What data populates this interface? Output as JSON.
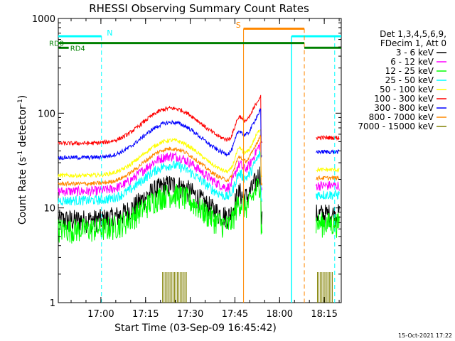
{
  "chart_data": {
    "type": "line",
    "title": "RHESSI Observing Summary Count Rates",
    "xlabel": "Start Time (03-Sep-09 16:45:42)",
    "ylabel_main": "Count Rate (s",
    "ylabel_sup": "-1",
    "ylabel_rest": " detector",
    "ylabel_end": ")",
    "y_scale": "log",
    "ylim": [
      1,
      1000
    ],
    "xlim_minutes": [
      0,
      95
    ],
    "y_ticks": [
      {
        "value": 1,
        "label": "1"
      },
      {
        "value": 10,
        "label": "10"
      },
      {
        "value": 100,
        "label": "100"
      },
      {
        "value": 1000,
        "label": "1000"
      }
    ],
    "x_ticks": [
      {
        "minute": 14.3,
        "label": "17:00"
      },
      {
        "minute": 29.3,
        "label": "17:15"
      },
      {
        "minute": 44.3,
        "label": "17:30"
      },
      {
        "minute": 59.3,
        "label": "17:45"
      },
      {
        "minute": 74.3,
        "label": "18:00"
      },
      {
        "minute": 89.3,
        "label": "18:15"
      }
    ],
    "legend_header": [
      "Det 1,3,4,5,6,9,",
      "FDecim 1, Att 0"
    ],
    "series": [
      {
        "name": "3 - 6 keV",
        "color": "#000000",
        "level": 7.5
      },
      {
        "name": "6 - 12 keV",
        "color": "#ff00ff",
        "level": 15
      },
      {
        "name": "12 - 25 keV",
        "color": "#00ff00",
        "level": 6
      },
      {
        "name": "25 - 50 keV",
        "color": "#00ffff",
        "level": 12
      },
      {
        "name": "50 - 100 keV",
        "color": "#ffff00",
        "level": 22
      },
      {
        "name": "100 - 300 keV",
        "color": "#ff0000",
        "level": 48
      },
      {
        "name": "300 - 800 keV",
        "color": "#0000ff",
        "level": 34
      },
      {
        "name": "800 - 7000 keV",
        "color": "#ff8800",
        "level": 18
      },
      {
        "name": "7000 - 15000 keV",
        "color": "#808000",
        "level": 1.5
      }
    ],
    "flags": {
      "N_label": "N",
      "S_label": "S",
      "RD0_label": "RD0",
      "RD4_label": "RD4"
    },
    "timestamp": "15-Oct-2021 17:22"
  }
}
